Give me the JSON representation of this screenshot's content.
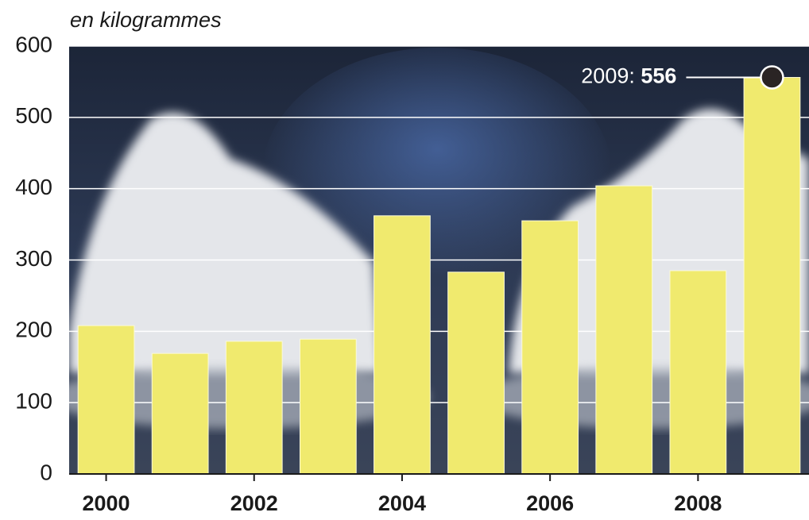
{
  "chart_data": {
    "type": "bar",
    "y_label": "en kilogrammes",
    "categories": [
      "2000",
      null,
      "2002",
      null,
      "2004",
      null,
      "2006",
      null,
      "2008",
      null
    ],
    "values": [
      208,
      169,
      186,
      189,
      362,
      283,
      355,
      404,
      285,
      556
    ],
    "color": "#f0ea6e",
    "ylim": [
      0,
      600
    ],
    "yticks": [
      0,
      100,
      200,
      300,
      400,
      500,
      600
    ],
    "grid": true,
    "annotation": "2009:"
  }
}
